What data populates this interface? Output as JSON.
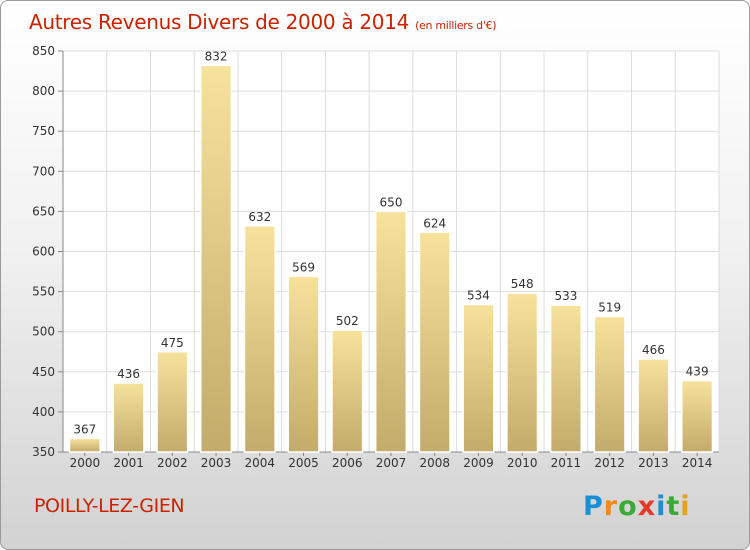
{
  "title": "Autres Revenus Divers de 2000 à 2014",
  "unit": "(en milliers d'€)",
  "commune": "POILLY-LEZ-GIEN",
  "logo": {
    "letters": [
      "P",
      "r",
      "o",
      "x",
      "i",
      "t",
      "i"
    ],
    "colors": [
      "#1a8fd6",
      "#f08a1c",
      "#3aa935",
      "#e53a2a",
      "#1a8fd6",
      "#3aa935",
      "#e5a21c"
    ]
  },
  "colors": {
    "title": "#cc2200",
    "bar_light": "#f7e29c",
    "bar_dark": "#c3ab6b"
  },
  "chart_data": {
    "type": "bar",
    "title": "Autres Revenus Divers de 2000 à 2014",
    "categories": [
      "2000",
      "2001",
      "2002",
      "2003",
      "2004",
      "2005",
      "2006",
      "2007",
      "2008",
      "2009",
      "2010",
      "2011",
      "2012",
      "2013",
      "2014"
    ],
    "values": [
      367,
      436,
      475,
      832,
      632,
      569,
      502,
      650,
      624,
      534,
      548,
      533,
      519,
      466,
      439
    ],
    "ylim": [
      350,
      850
    ],
    "yticks": [
      350,
      400,
      450,
      500,
      550,
      600,
      650,
      700,
      750,
      800,
      850
    ],
    "grid": true
  }
}
